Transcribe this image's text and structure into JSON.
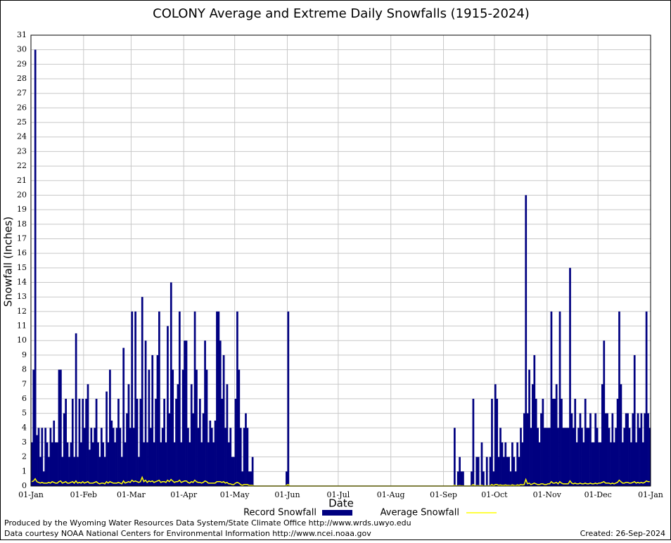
{
  "chart_data": {
    "type": "bar",
    "title": "COLONY Average and Extreme Daily Snowfalls (1915-2024)",
    "x_label": "Date",
    "y_label": "Snowfall (Inches)",
    "credits": [
      "Produced by the Wyoming Water Resources Data System/State Climate Office http://www.wrds.uwyo.edu",
      "Data courtesy NOAA National Centers for Environmental Information http://www.ncei.noaa.gov"
    ],
    "created": "Created:  26-Sep-2024",
    "grid": true,
    "xlim": [
      0,
      365
    ],
    "ylim": [
      0,
      31
    ],
    "xticks": [
      {
        "value": 0,
        "label": "01-Jan"
      },
      {
        "value": 31,
        "label": "01-Feb"
      },
      {
        "value": 59,
        "label": "01-Mar"
      },
      {
        "value": 90,
        "label": "01-Apr"
      },
      {
        "value": 120,
        "label": "01-May"
      },
      {
        "value": 151,
        "label": "01-Jun"
      },
      {
        "value": 181,
        "label": "01-Jul"
      },
      {
        "value": 212,
        "label": "01-Aug"
      },
      {
        "value": 243,
        "label": "01-Sep"
      },
      {
        "value": 273,
        "label": "01-Oct"
      },
      {
        "value": 304,
        "label": "01-Nov"
      },
      {
        "value": 334,
        "label": "01-Dec"
      },
      {
        "value": 365,
        "label": "01-Jan"
      }
    ],
    "yticks": [
      0,
      1,
      2,
      3,
      4,
      5,
      6,
      7,
      8,
      9,
      10,
      11,
      12,
      13,
      14,
      15,
      16,
      17,
      18,
      19,
      20,
      21,
      22,
      23,
      24,
      25,
      26,
      27,
      28,
      29,
      30,
      31
    ],
    "x": [
      0,
      1,
      2,
      3,
      4,
      5,
      6,
      7,
      8,
      9,
      10,
      11,
      12,
      13,
      14,
      15,
      16,
      17,
      18,
      19,
      20,
      21,
      22,
      23,
      24,
      25,
      26,
      27,
      28,
      29,
      30,
      31,
      32,
      33,
      34,
      35,
      36,
      37,
      38,
      39,
      40,
      41,
      42,
      43,
      44,
      45,
      46,
      47,
      48,
      49,
      50,
      51,
      52,
      53,
      54,
      55,
      56,
      57,
      58,
      59,
      60,
      61,
      62,
      63,
      64,
      65,
      66,
      67,
      68,
      69,
      70,
      71,
      72,
      73,
      74,
      75,
      76,
      77,
      78,
      79,
      80,
      81,
      82,
      83,
      84,
      85,
      86,
      87,
      88,
      89,
      90,
      91,
      92,
      93,
      94,
      95,
      96,
      97,
      98,
      99,
      100,
      101,
      102,
      103,
      104,
      105,
      106,
      107,
      108,
      109,
      110,
      111,
      112,
      113,
      114,
      115,
      116,
      117,
      118,
      119,
      120,
      121,
      122,
      123,
      124,
      125,
      126,
      127,
      128,
      129,
      130,
      131,
      132,
      133,
      134,
      135,
      136,
      137,
      138,
      139,
      140,
      141,
      142,
      143,
      144,
      145,
      146,
      147,
      148,
      149,
      150,
      151,
      152,
      153,
      154,
      155,
      156,
      157,
      158,
      159,
      160,
      161,
      162,
      163,
      164,
      165,
      166,
      167,
      168,
      169,
      170,
      171,
      172,
      173,
      174,
      175,
      176,
      177,
      178,
      179,
      180,
      181,
      182,
      183,
      184,
      185,
      186,
      187,
      188,
      189,
      190,
      191,
      192,
      193,
      194,
      195,
      196,
      197,
      198,
      199,
      200,
      201,
      202,
      203,
      204,
      205,
      206,
      207,
      208,
      209,
      210,
      211,
      212,
      213,
      214,
      215,
      216,
      217,
      218,
      219,
      220,
      221,
      222,
      223,
      224,
      225,
      226,
      227,
      228,
      229,
      230,
      231,
      232,
      233,
      234,
      235,
      236,
      237,
      238,
      239,
      240,
      241,
      242,
      243,
      244,
      245,
      246,
      247,
      248,
      249,
      250,
      251,
      252,
      253,
      254,
      255,
      256,
      257,
      258,
      259,
      260,
      261,
      262,
      263,
      264,
      265,
      266,
      267,
      268,
      269,
      270,
      271,
      272,
      273,
      274,
      275,
      276,
      277,
      278,
      279,
      280,
      281,
      282,
      283,
      284,
      285,
      286,
      287,
      288,
      289,
      290,
      291,
      292,
      293,
      294,
      295,
      296,
      297,
      298,
      299,
      300,
      301,
      302,
      303,
      304,
      305,
      306,
      307,
      308,
      309,
      310,
      311,
      312,
      313,
      314,
      315,
      316,
      317,
      318,
      319,
      320,
      321,
      322,
      323,
      324,
      325,
      326,
      327,
      328,
      329,
      330,
      331,
      332,
      333,
      334,
      335,
      336,
      337,
      338,
      339,
      340,
      341,
      342,
      343,
      344,
      345,
      346,
      347,
      348,
      349,
      350,
      351,
      352,
      353,
      354,
      355,
      356,
      357,
      358,
      359,
      360,
      361,
      362,
      363,
      364
    ],
    "series": [
      {
        "name": "Record Snowfall",
        "type": "bar",
        "color": "#000080",
        "values": [
          3,
          8,
          30,
          3.5,
          4,
          2,
          4,
          1,
          4,
          3,
          2,
          4,
          3,
          4.5,
          3,
          3,
          8,
          8,
          2,
          5,
          6,
          3,
          2,
          3,
          6,
          2,
          10.5,
          2,
          6,
          3,
          6,
          4,
          6,
          7,
          2.5,
          4,
          3,
          4,
          6,
          3,
          2,
          4,
          3,
          2,
          6.5,
          3,
          8,
          4.5,
          4,
          3,
          4,
          6,
          4,
          2,
          9.5,
          3,
          5,
          7,
          4,
          12,
          4,
          12,
          6,
          2,
          6,
          13,
          3,
          10,
          3,
          8,
          4,
          9,
          3,
          6,
          9,
          12,
          3,
          4,
          6,
          3,
          11,
          5,
          14,
          8,
          3,
          6,
          7,
          12,
          3,
          8,
          10,
          10,
          4,
          3,
          7,
          5,
          12,
          8,
          4,
          6,
          3,
          5,
          10,
          8,
          3,
          4.5,
          4,
          3,
          4.5,
          12,
          12,
          10,
          6,
          9,
          4,
          7,
          3,
          4,
          2,
          2,
          6,
          12,
          8,
          4,
          1,
          4,
          5,
          4,
          1,
          1,
          2,
          0,
          0,
          0,
          0,
          0,
          0,
          0,
          0,
          0,
          0,
          0,
          0,
          0,
          0,
          0,
          0,
          0,
          0,
          0,
          1,
          12,
          0,
          0,
          0,
          0,
          0,
          0,
          0,
          0,
          0,
          0,
          0,
          0,
          0,
          0,
          0,
          0,
          0,
          0,
          0,
          0,
          0,
          0,
          0,
          0,
          0,
          0,
          0,
          0,
          0,
          0,
          0,
          0,
          0,
          0,
          0,
          0,
          0,
          0,
          0,
          0,
          0,
          0,
          0,
          0,
          0,
          0,
          0,
          0,
          0,
          0,
          0,
          0,
          0,
          0,
          0,
          0,
          0,
          0,
          0,
          0,
          0,
          0,
          0,
          0,
          0,
          0,
          0,
          0,
          0,
          0,
          0,
          0,
          0,
          0,
          0,
          0,
          0,
          0,
          0,
          0,
          0,
          0,
          0,
          0,
          0,
          0,
          0,
          0,
          0,
          0,
          0,
          0,
          0,
          0,
          0,
          0,
          0,
          4,
          0,
          1,
          2,
          1,
          1,
          0,
          0,
          0,
          0,
          1,
          6,
          0,
          2,
          2,
          0,
          3,
          1,
          0,
          2,
          0,
          2,
          6,
          1,
          7,
          6,
          2,
          4,
          3,
          2,
          3,
          2,
          2,
          1,
          3,
          2,
          1,
          3,
          2,
          4,
          3,
          5,
          20,
          5,
          8,
          4,
          7,
          9,
          6,
          4,
          3,
          5,
          6,
          4,
          4,
          4,
          4,
          12,
          6,
          6,
          7,
          4,
          12,
          6,
          4,
          4,
          4,
          4,
          15,
          5,
          4,
          6,
          3,
          4,
          5,
          4,
          3,
          6,
          4,
          4,
          5,
          3,
          3,
          5,
          4,
          3,
          3,
          7,
          10,
          5,
          5,
          4,
          3,
          5,
          3,
          4,
          6,
          12,
          7,
          3,
          4,
          5,
          5,
          4,
          3,
          5,
          9,
          3,
          5,
          4,
          5,
          3,
          5,
          12,
          5,
          4
        ]
      },
      {
        "name": "Average Snowfall",
        "type": "line",
        "color": "#ffff00",
        "values": [
          0.3,
          0.35,
          0.5,
          0.3,
          0.25,
          0.2,
          0.25,
          0.2,
          0.2,
          0.2,
          0.25,
          0.2,
          0.3,
          0.25,
          0.2,
          0.2,
          0.3,
          0.35,
          0.2,
          0.25,
          0.3,
          0.2,
          0.2,
          0.25,
          0.3,
          0.2,
          0.35,
          0.2,
          0.25,
          0.2,
          0.3,
          0.2,
          0.25,
          0.3,
          0.2,
          0.2,
          0.2,
          0.25,
          0.3,
          0.2,
          0.15,
          0.2,
          0.2,
          0.15,
          0.3,
          0.2,
          0.3,
          0.25,
          0.2,
          0.2,
          0.2,
          0.25,
          0.2,
          0.15,
          0.35,
          0.2,
          0.25,
          0.3,
          0.25,
          0.4,
          0.3,
          0.35,
          0.3,
          0.25,
          0.3,
          0.6,
          0.3,
          0.4,
          0.25,
          0.35,
          0.3,
          0.35,
          0.25,
          0.3,
          0.35,
          0.4,
          0.25,
          0.3,
          0.3,
          0.25,
          0.4,
          0.3,
          0.45,
          0.35,
          0.25,
          0.3,
          0.3,
          0.4,
          0.25,
          0.3,
          0.35,
          0.35,
          0.25,
          0.2,
          0.3,
          0.25,
          0.4,
          0.3,
          0.25,
          0.25,
          0.2,
          0.25,
          0.35,
          0.3,
          0.2,
          0.2,
          0.2,
          0.2,
          0.2,
          0.3,
          0.3,
          0.3,
          0.25,
          0.3,
          0.2,
          0.25,
          0.15,
          0.15,
          0.1,
          0.1,
          0.2,
          0.25,
          0.2,
          0.1,
          0.05,
          0.1,
          0.1,
          0.1,
          0.05,
          0.05,
          0.05,
          0,
          0,
          0,
          0,
          0,
          0,
          0,
          0,
          0,
          0,
          0,
          0,
          0,
          0,
          0,
          0,
          0,
          0,
          0,
          0.05,
          0.1,
          0,
          0,
          0,
          0,
          0,
          0,
          0,
          0,
          0,
          0,
          0,
          0,
          0,
          0,
          0,
          0,
          0,
          0,
          0,
          0,
          0,
          0,
          0,
          0,
          0,
          0,
          0,
          0,
          0,
          0,
          0,
          0,
          0,
          0,
          0,
          0,
          0,
          0,
          0,
          0,
          0,
          0,
          0,
          0,
          0,
          0,
          0,
          0,
          0,
          0,
          0,
          0,
          0,
          0,
          0,
          0,
          0,
          0,
          0,
          0,
          0,
          0,
          0,
          0,
          0,
          0,
          0,
          0,
          0,
          0,
          0,
          0,
          0,
          0,
          0,
          0,
          0,
          0,
          0,
          0,
          0,
          0,
          0,
          0,
          0,
          0,
          0,
          0,
          0,
          0,
          0,
          0,
          0,
          0,
          0,
          0,
          0,
          0.05,
          0,
          0.02,
          0.03,
          0.02,
          0.02,
          0,
          0,
          0,
          0,
          0.02,
          0.1,
          0,
          0.03,
          0.03,
          0,
          0.05,
          0.02,
          0,
          0.03,
          0,
          0.03,
          0.1,
          0.03,
          0.1,
          0.1,
          0.05,
          0.08,
          0.05,
          0.05,
          0.08,
          0.05,
          0.05,
          0.03,
          0.08,
          0.05,
          0.03,
          0.08,
          0.05,
          0.1,
          0.08,
          0.1,
          0.45,
          0.15,
          0.2,
          0.1,
          0.15,
          0.2,
          0.15,
          0.1,
          0.1,
          0.15,
          0.15,
          0.1,
          0.1,
          0.15,
          0.15,
          0.3,
          0.2,
          0.2,
          0.25,
          0.15,
          0.3,
          0.2,
          0.15,
          0.15,
          0.15,
          0.15,
          0.35,
          0.2,
          0.15,
          0.2,
          0.15,
          0.15,
          0.2,
          0.15,
          0.15,
          0.2,
          0.15,
          0.15,
          0.2,
          0.15,
          0.15,
          0.2,
          0.15,
          0.2,
          0.2,
          0.25,
          0.3,
          0.2,
          0.2,
          0.2,
          0.15,
          0.2,
          0.15,
          0.2,
          0.25,
          0.4,
          0.3,
          0.2,
          0.2,
          0.25,
          0.25,
          0.2,
          0.2,
          0.25,
          0.3,
          0.2,
          0.25,
          0.2,
          0.25,
          0.2,
          0.25,
          0.35,
          0.3,
          0.3
        ]
      }
    ]
  }
}
